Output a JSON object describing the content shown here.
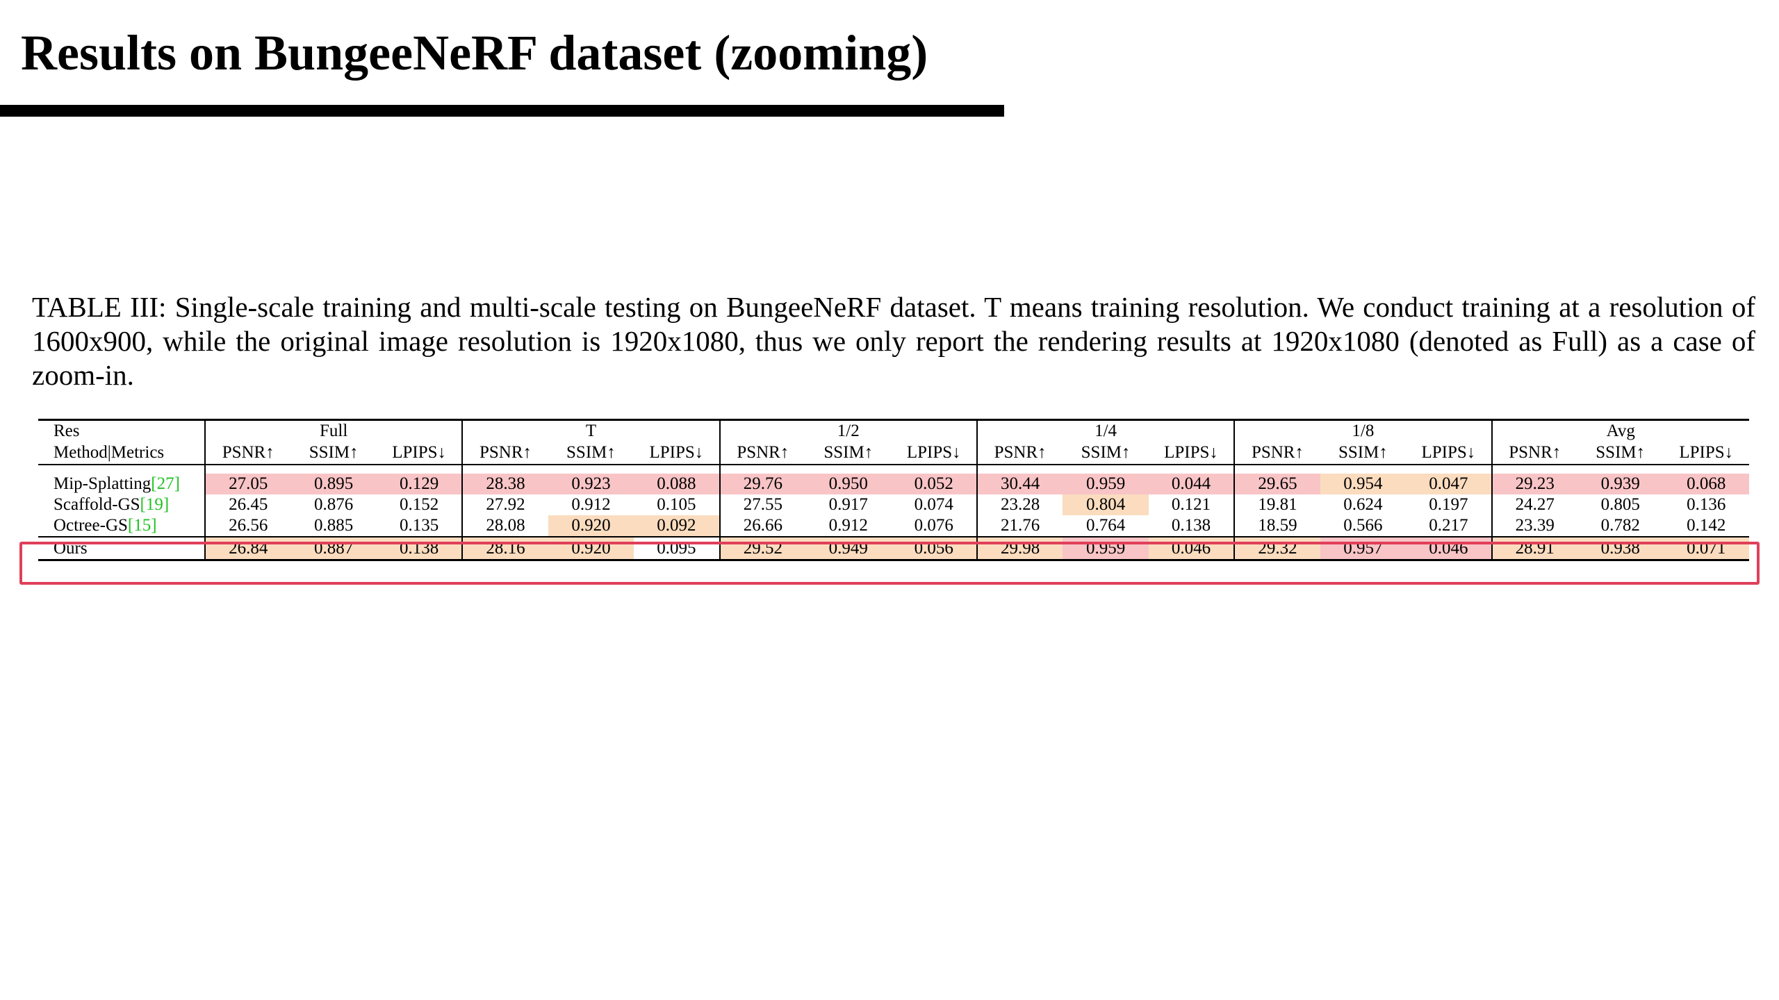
{
  "slide": {
    "title": "Results on BungeeNeRF dataset (zooming)"
  },
  "caption": "TABLE III: Single-scale training and multi-scale testing on BungeeNeRF dataset. T means training resolution. We conduct training at a resolution of 1600x900, while the original image resolution is 1920x1080, thus we only report the rendering results at 1920x1080 (denoted as Full) as a case of zoom-in.",
  "colors": {
    "best": "#f8c4c6",
    "second": "#fbdcbf",
    "highlight_box": "#e0405a",
    "reference_link": "#22c222"
  },
  "table": {
    "header_res": "Res",
    "header_method": "Method|Metrics",
    "groups": [
      "Full",
      "T",
      "1/2",
      "1/4",
      "1/8",
      "Avg"
    ],
    "metrics": [
      "PSNR↑",
      "SSIM↑",
      "LPIPS↓"
    ],
    "rows": [
      {
        "name": "Mip-Splatting",
        "ref": "[27]",
        "values": [
          "27.05",
          "0.895",
          "0.129",
          "28.38",
          "0.923",
          "0.088",
          "29.76",
          "0.950",
          "0.052",
          "30.44",
          "0.959",
          "0.044",
          "29.65",
          "0.954",
          "0.047",
          "29.23",
          "0.939",
          "0.068"
        ],
        "shade": [
          "best",
          "best",
          "best",
          "best",
          "best",
          "best",
          "best",
          "best",
          "best",
          "best",
          "best",
          "best",
          "best",
          "second",
          "second",
          "best",
          "best",
          "best"
        ]
      },
      {
        "name": "Scaffold-GS",
        "ref": "[19]",
        "values": [
          "26.45",
          "0.876",
          "0.152",
          "27.92",
          "0.912",
          "0.105",
          "27.55",
          "0.917",
          "0.074",
          "23.28",
          "0.804",
          "0.121",
          "19.81",
          "0.624",
          "0.197",
          "24.27",
          "0.805",
          "0.136"
        ],
        "shade": [
          "",
          "",
          "",
          "",
          "",
          "",
          "",
          "",
          "",
          "",
          "second",
          "",
          "",
          "",
          "",
          "",
          "",
          ""
        ]
      },
      {
        "name": "Octree-GS",
        "ref": "[15]",
        "values": [
          "26.56",
          "0.885",
          "0.135",
          "28.08",
          "0.920",
          "0.092",
          "26.66",
          "0.912",
          "0.076",
          "21.76",
          "0.764",
          "0.138",
          "18.59",
          "0.566",
          "0.217",
          "23.39",
          "0.782",
          "0.142"
        ],
        "shade": [
          "",
          "",
          "",
          "",
          "second",
          "second",
          "",
          "",
          "",
          "",
          "",
          "",
          "",
          "",
          "",
          "",
          "",
          ""
        ]
      },
      {
        "name": "Ours",
        "ref": "",
        "values": [
          "26.84",
          "0.887",
          "0.138",
          "28.16",
          "0.920",
          "0.095",
          "29.52",
          "0.949",
          "0.056",
          "29.98",
          "0.959",
          "0.046",
          "29.32",
          "0.957",
          "0.046",
          "28.91",
          "0.938",
          "0.071"
        ],
        "shade": [
          "second",
          "second",
          "second",
          "second",
          "second",
          "",
          "second",
          "second",
          "second",
          "second",
          "best",
          "second",
          "second",
          "best",
          "best",
          "second",
          "second",
          "second"
        ]
      }
    ]
  }
}
